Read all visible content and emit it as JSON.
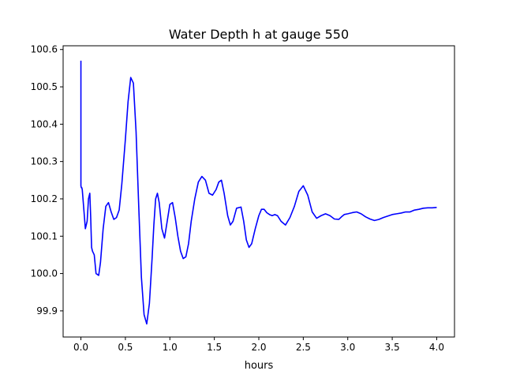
{
  "chart_data": {
    "type": "line",
    "title": "Water Depth h at gauge 550",
    "xlabel": "hours",
    "ylabel": "",
    "xlim": [
      -0.2,
      4.2
    ],
    "ylim": [
      99.83,
      100.61
    ],
    "xticks": [
      0.0,
      0.5,
      1.0,
      1.5,
      2.0,
      2.5,
      3.0,
      3.5,
      4.0
    ],
    "xtick_labels": [
      "0.0",
      "0.5",
      "1.0",
      "1.5",
      "2.0",
      "2.5",
      "3.0",
      "3.5",
      "4.0"
    ],
    "yticks": [
      99.9,
      100.0,
      100.1,
      100.2,
      100.3,
      100.4,
      100.5,
      100.6
    ],
    "ytick_labels": [
      "99.9",
      "100.0",
      "100.1",
      "100.2",
      "100.3",
      "100.4",
      "100.5",
      "100.6"
    ],
    "grid": false,
    "series": [
      {
        "name": "",
        "color": "#0000ff",
        "x": [
          0.0,
          0.0,
          0.005,
          0.01,
          0.015,
          0.03,
          0.05,
          0.07,
          0.085,
          0.1,
          0.11,
          0.12,
          0.13,
          0.15,
          0.17,
          0.2,
          0.22,
          0.25,
          0.28,
          0.31,
          0.34,
          0.37,
          0.4,
          0.43,
          0.46,
          0.5,
          0.53,
          0.56,
          0.59,
          0.62,
          0.65,
          0.68,
          0.71,
          0.74,
          0.77,
          0.8,
          0.82,
          0.84,
          0.86,
          0.88,
          0.91,
          0.94,
          0.97,
          1.0,
          1.03,
          1.06,
          1.09,
          1.12,
          1.15,
          1.18,
          1.21,
          1.24,
          1.28,
          1.32,
          1.36,
          1.4,
          1.44,
          1.48,
          1.52,
          1.55,
          1.58,
          1.61,
          1.65,
          1.68,
          1.71,
          1.75,
          1.8,
          1.83,
          1.86,
          1.89,
          1.92,
          1.96,
          2.0,
          2.03,
          2.06,
          2.09,
          2.12,
          2.15,
          2.18,
          2.21,
          2.25,
          2.3,
          2.35,
          2.4,
          2.45,
          2.5,
          2.55,
          2.6,
          2.65,
          2.7,
          2.75,
          2.8,
          2.85,
          2.9,
          2.93,
          2.96,
          3.0,
          3.05,
          3.1,
          3.15,
          3.2,
          3.25,
          3.3,
          3.35,
          3.4,
          3.45,
          3.5,
          3.55,
          3.6,
          3.65,
          3.7,
          3.75,
          3.8,
          3.85,
          3.9,
          3.95,
          4.0
        ],
        "y": [
          100.57,
          100.235,
          100.23,
          100.23,
          100.225,
          100.18,
          100.12,
          100.14,
          100.2,
          100.215,
          100.15,
          100.07,
          100.06,
          100.05,
          100.0,
          99.995,
          100.03,
          100.12,
          100.18,
          100.19,
          100.165,
          100.145,
          100.15,
          100.17,
          100.24,
          100.36,
          100.46,
          100.525,
          100.51,
          100.38,
          100.18,
          99.99,
          99.89,
          99.865,
          99.92,
          100.04,
          100.13,
          100.2,
          100.215,
          100.19,
          100.12,
          100.095,
          100.14,
          100.185,
          100.19,
          100.15,
          100.1,
          100.06,
          100.04,
          100.045,
          100.08,
          100.14,
          100.2,
          100.245,
          100.26,
          100.25,
          100.215,
          100.21,
          100.225,
          100.245,
          100.25,
          100.215,
          100.155,
          100.13,
          100.14,
          100.175,
          100.178,
          100.14,
          100.09,
          100.07,
          100.08,
          100.12,
          100.155,
          100.172,
          100.172,
          100.163,
          100.158,
          100.155,
          100.158,
          100.155,
          100.14,
          100.13,
          100.15,
          100.18,
          100.22,
          100.235,
          100.21,
          100.165,
          100.148,
          100.155,
          100.16,
          100.155,
          100.146,
          100.145,
          100.152,
          100.158,
          100.16,
          100.163,
          100.165,
          100.16,
          100.152,
          100.146,
          100.142,
          100.145,
          100.15,
          100.154,
          100.158,
          100.16,
          100.162,
          100.165,
          100.165,
          100.17,
          100.172,
          100.175,
          100.176,
          100.176,
          100.177
        ]
      }
    ]
  }
}
